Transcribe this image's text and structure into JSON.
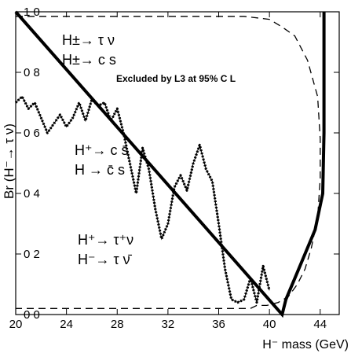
{
  "chart_data": {
    "type": "line",
    "xlabel": "H⁻ mass (GeV)",
    "ylabel": "Br (H⁻→ τ ν)",
    "xlim": [
      20,
      45.5
    ],
    "ylim": [
      0,
      1.0
    ],
    "x_ticks": [
      20,
      24,
      28,
      32,
      36,
      40,
      44
    ],
    "x_tick_labels": [
      "20",
      "24",
      "28",
      "32",
      "36",
      "40",
      "44"
    ],
    "y_ticks": [
      0,
      0.2,
      0.4,
      0.6,
      0.8,
      1.0
    ],
    "y_tick_labels": [
      "0 0",
      "0 2",
      "0 4",
      "0 6",
      "0 8",
      "1 0"
    ],
    "grid": false,
    "annotations": [
      "H±→ τ ν",
      "H±→ c s",
      "Excluded by L3 at 95% C L",
      "H⁺→ c s̄",
      "H  → c̄ s",
      "H⁺→ τ⁺ν",
      "H⁻→ τ  ν̄"
    ],
    "series": [
      {
        "style": "solid-thick",
        "x": [
          20,
          41.0,
          41.3,
          42.0,
          42.8,
          43.6,
          44.2,
          44.3,
          44.3,
          44.3
        ],
        "y": [
          1.0,
          0.0,
          0.05,
          0.12,
          0.2,
          0.28,
          0.4,
          0.6,
          0.8,
          1.0
        ]
      },
      {
        "style": "dashed",
        "x": [
          20,
          38,
          40,
          41,
          42,
          43,
          43.8,
          44.0,
          44.0,
          43.8,
          43.3,
          42.8,
          42.2,
          41.5,
          40.7,
          39.8,
          39.0,
          38.5,
          37.8,
          36.5,
          20
        ],
        "y": [
          0.985,
          0.985,
          0.975,
          0.95,
          0.92,
          0.84,
          0.72,
          0.58,
          0.45,
          0.32,
          0.22,
          0.15,
          0.1,
          0.06,
          0.04,
          0.03,
          0.03,
          0.02,
          0.02,
          0.02,
          0.02
        ]
      },
      {
        "style": "hatched",
        "x": [
          20,
          20.5,
          21,
          21.5,
          22,
          22.5,
          23,
          23.5,
          24,
          24.5,
          25,
          25.5,
          26,
          26.5,
          27,
          27.5,
          28,
          28.5,
          29,
          29.5,
          30,
          30.5,
          31,
          31.5,
          32,
          32.5,
          33,
          33.5,
          34,
          34.5,
          35,
          35.5,
          36,
          36.5,
          37,
          37.5,
          38,
          38.5,
          39,
          39.5,
          40
        ],
        "y": [
          0.7,
          0.72,
          0.68,
          0.7,
          0.65,
          0.6,
          0.63,
          0.66,
          0.62,
          0.65,
          0.7,
          0.64,
          0.71,
          0.69,
          0.7,
          0.64,
          0.68,
          0.6,
          0.5,
          0.4,
          0.55,
          0.48,
          0.35,
          0.25,
          0.3,
          0.42,
          0.46,
          0.41,
          0.5,
          0.56,
          0.48,
          0.44,
          0.3,
          0.15,
          0.05,
          0.04,
          0.05,
          0.12,
          0.04,
          0.16,
          0.08
        ]
      }
    ]
  }
}
